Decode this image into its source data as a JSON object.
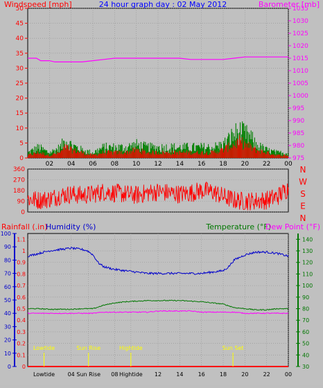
{
  "background": "#c0c0c0",
  "colors": {
    "wind": "#ff0000",
    "gust_fill": "#008000",
    "barometer": "#ff00ff",
    "title": "#0000ff",
    "direction": "#ff0000",
    "rain": "#ff0000",
    "humidity": "#0000cc",
    "temperature": "#007700",
    "dewpoint": "#ff00ff",
    "events": "#ffff00",
    "axis_text": "#000000"
  },
  "chart_data": [
    {
      "type": "line",
      "title": "24 hour graph day : 02 May 2012",
      "left_axis_label": "Windspeed [mph]",
      "right_axis_label": "Barometer [mb]",
      "x_ticks": [
        "02",
        "04",
        "06",
        "08",
        "10",
        "12",
        "14",
        "16",
        "18",
        "20",
        "22",
        "00"
      ],
      "xlim": [
        0,
        24
      ],
      "ylim_left": [
        0,
        50
      ],
      "left_ticks": [
        "0",
        "5",
        "10",
        "15",
        "20",
        "25",
        "30",
        "35",
        "40",
        "45",
        "50"
      ],
      "ylim_right": [
        975,
        1035
      ],
      "right_ticks": [
        "975",
        "980",
        "985",
        "990",
        "995",
        "1000",
        "1005",
        "1010",
        "1015",
        "1020",
        "1025",
        "1030",
        "1035"
      ],
      "grid": true,
      "series": [
        {
          "name": "Windspeed",
          "x": [
            0,
            1,
            2,
            3,
            3.5,
            4,
            5,
            6,
            7,
            8,
            9,
            10,
            11,
            12,
            13,
            14,
            15,
            16,
            17,
            18,
            18.5,
            19,
            19.5,
            20,
            20.5,
            21,
            22,
            23,
            24
          ],
          "y": [
            1,
            2,
            1,
            2,
            4,
            3,
            2,
            1,
            2,
            2,
            2,
            3,
            2,
            2,
            2,
            2,
            2,
            2,
            2,
            3,
            4,
            5,
            6,
            5,
            4,
            3,
            2,
            1,
            1
          ]
        },
        {
          "name": "Wind gust",
          "x": [
            0,
            1,
            2,
            3,
            3.5,
            4,
            5,
            6,
            7,
            8,
            9,
            10,
            11,
            12,
            13,
            14,
            15,
            16,
            17,
            18,
            18.5,
            19,
            19.5,
            20,
            20.5,
            21,
            22,
            23,
            24
          ],
          "y": [
            2,
            4,
            2,
            4,
            7,
            5,
            3,
            2,
            4,
            4,
            4,
            5,
            4,
            4,
            4,
            4,
            4,
            4,
            4,
            5,
            7,
            9,
            10,
            9,
            8,
            5,
            3,
            2,
            2
          ]
        },
        {
          "name": "Barometer",
          "x": [
            0,
            0.8,
            1.2,
            2,
            2.5,
            3,
            5,
            6,
            7,
            8,
            12,
            14,
            15,
            18,
            19,
            20,
            24
          ],
          "y": [
            1015,
            1015,
            1014,
            1014,
            1013.5,
            1013.5,
            1013.5,
            1014,
            1014.5,
            1015,
            1015,
            1015,
            1014.5,
            1014.5,
            1015,
            1015.5,
            1015.5
          ]
        }
      ]
    },
    {
      "type": "line",
      "right_labels": [
        "N",
        "W",
        "S",
        "E",
        "N"
      ],
      "ylim": [
        0,
        360
      ],
      "y_ticks": [
        "0",
        "90",
        "180",
        "270",
        "360"
      ],
      "x_ticks": [],
      "xlim": [
        0,
        24
      ],
      "grid": true,
      "series": [
        {
          "name": "Wind direction",
          "x": [
            0,
            1,
            2,
            3,
            4,
            5,
            6,
            7,
            8,
            9,
            10,
            11,
            12,
            13,
            14,
            15,
            16,
            17,
            18,
            19,
            20,
            21,
            22,
            23,
            24
          ],
          "y": [
            110,
            100,
            110,
            140,
            150,
            140,
            150,
            170,
            160,
            150,
            140,
            160,
            170,
            160,
            150,
            160,
            180,
            170,
            130,
            100,
            90,
            95,
            100,
            130,
            200
          ]
        }
      ]
    },
    {
      "type": "line",
      "top_labels": {
        "rainfall": "Rainfall (.in)",
        "humidity": "Humidity (%)",
        "temperature": "Temperature (°F)",
        "dewpoint": "Dew Point (°F)"
      },
      "humidity_axis": {
        "ticks": [
          "0",
          "10",
          "20",
          "30",
          "40",
          "50",
          "60",
          "70",
          "80",
          "90",
          "100"
        ],
        "ylim": [
          0,
          100
        ]
      },
      "rain_axis": {
        "ticks": [
          "0",
          "0.1",
          "0.2",
          "0.3",
          "0.4",
          "0.5",
          "0.6",
          "0.7",
          "0.8",
          "0.9",
          "1",
          "1.1"
        ],
        "ylim": [
          0,
          1.15
        ]
      },
      "temp_axis": {
        "ticks": [
          "30",
          "40",
          "50",
          "60",
          "70",
          "80",
          "90",
          "100",
          "110",
          "120",
          "130",
          "140"
        ],
        "ylim": [
          30,
          145
        ]
      },
      "xlim": [
        0,
        24
      ],
      "x_ticks": [
        "Lowtide",
        "04",
        "Sun Rise",
        "08",
        "Hightide",
        "12",
        "14",
        "16",
        "18",
        "20",
        "22",
        "00"
      ],
      "x_tick_positions": [
        1.5,
        4,
        5.6,
        8,
        9.5,
        12,
        14,
        16,
        18,
        20,
        22,
        24
      ],
      "events": [
        {
          "label": "Lowtide",
          "x": 1.5
        },
        {
          "label": "Sun Rise",
          "x": 5.6
        },
        {
          "label": "Hightide",
          "x": 9.5
        },
        {
          "label": "Sun Set",
          "x": 18.9
        }
      ],
      "grid": true,
      "series": [
        {
          "name": "Humidity",
          "x": [
            0,
            1,
            2,
            3,
            4,
            5,
            5.5,
            6,
            6.5,
            7,
            8,
            9,
            10,
            11,
            12,
            13,
            14,
            15,
            16,
            17,
            18,
            18.5,
            19,
            19.5,
            20,
            21,
            22,
            23,
            24
          ],
          "y": [
            83,
            85,
            87,
            88,
            89,
            88,
            87,
            84,
            78,
            75,
            73,
            72,
            71,
            70,
            70,
            70,
            70,
            70,
            70,
            71,
            72,
            75,
            80,
            82,
            84,
            86,
            86,
            85,
            83
          ]
        },
        {
          "name": "Temperature",
          "x": [
            0,
            1,
            2,
            3,
            4,
            5,
            6,
            7,
            8,
            9,
            10,
            11,
            12,
            13,
            14,
            15,
            16,
            17,
            18,
            19,
            20,
            21,
            22,
            23,
            24
          ],
          "y": [
            80,
            80,
            79.5,
            79.5,
            79.5,
            80,
            80,
            83,
            85,
            86,
            86.5,
            87,
            87,
            87,
            87,
            86.5,
            86,
            85,
            84,
            81,
            80,
            79,
            79,
            80,
            80
          ]
        },
        {
          "name": "Dew Point",
          "x": [
            0,
            1,
            2,
            3,
            4,
            5,
            6,
            7,
            8,
            9,
            10,
            11,
            12,
            13,
            14,
            15,
            16,
            17,
            18,
            19,
            20,
            21,
            22,
            23,
            24
          ],
          "y": [
            76,
            76,
            76,
            76,
            76,
            76,
            76,
            77,
            77,
            77,
            77,
            77,
            78,
            78,
            78,
            78,
            77,
            77,
            77,
            77,
            76,
            76,
            76,
            76,
            76
          ]
        },
        {
          "name": "Rainfall",
          "x": [
            0,
            24
          ],
          "y": [
            0,
            0
          ]
        }
      ]
    }
  ]
}
